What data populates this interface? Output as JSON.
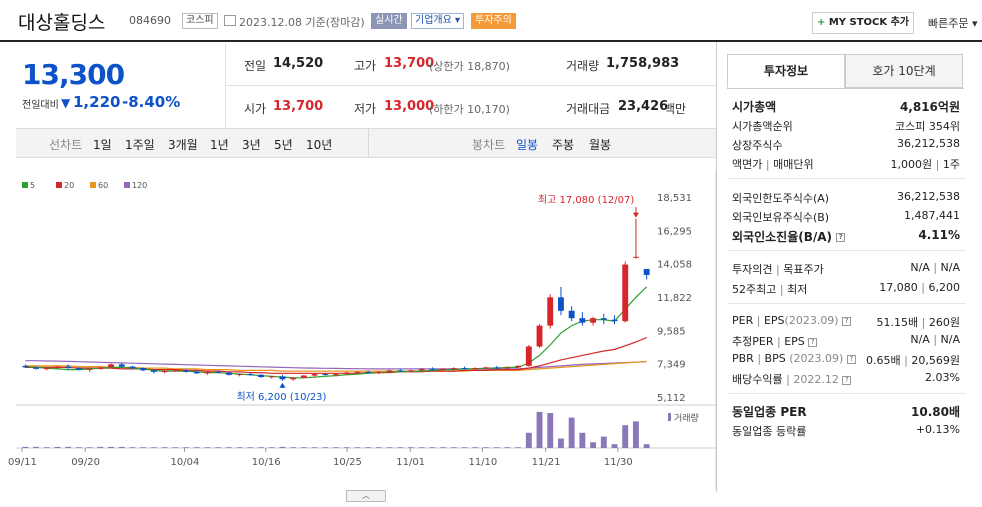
{
  "header": {
    "stock_name": "대상홀딩스",
    "stock_code": "084690",
    "market_badge": "코스피",
    "date_text": "2023.12.08 기준(장마감)",
    "realtime_btn": "실시간",
    "overview_btn": "기업개요 ▾",
    "caution_btn": "투자주의",
    "mystock_btn": "MY STOCK 추가",
    "mystock_plus": "+",
    "quick_order": "빠른주문 ▾"
  },
  "quote": {
    "price": "13,300",
    "change_label": "전일대비",
    "change_value": "1,220",
    "change_pct": "-8.40%",
    "prev_label": "전일",
    "prev_value": "14,520",
    "high_label": "고가",
    "high_value": "13,700",
    "upper_limit": "(상한가 18,870)",
    "volume_label": "거래량",
    "volume_value": "1,758,983",
    "open_label": "시가",
    "open_value": "13,700",
    "low_label": "저가",
    "low_value": "13,000",
    "lower_limit": "(하한가 10,170)",
    "amount_label": "거래대금",
    "amount_value": "23,426",
    "amount_unit": "백만"
  },
  "period_bar": {
    "line_label": "선차트",
    "periods": [
      "1일",
      "1주일",
      "3개월",
      "1년",
      "3년",
      "5년",
      "10년"
    ],
    "candle_label": "봉차트",
    "candle_periods": [
      "일봉",
      "주봉",
      "월봉"
    ],
    "candle_active": "일봉"
  },
  "chart_data": {
    "type": "candlestick",
    "legend": [
      {
        "name": "5",
        "color": "#2ca02c"
      },
      {
        "name": "20",
        "color": "#d62728"
      },
      {
        "name": "60",
        "color": "#e8961e"
      },
      {
        "name": "120",
        "color": "#9467bd"
      }
    ],
    "y_ticks": [
      18531,
      16295,
      14058,
      11822,
      9585,
      7349,
      5112
    ],
    "ylim": [
      5112,
      18531
    ],
    "x_labels": [
      "09/11",
      "09/20",
      "10/04",
      "10/16",
      "10/25",
      "11/01",
      "11/10",
      "11/21",
      "11/30"
    ],
    "high_annotation": "최고 17,080 (12/07)",
    "low_annotation": "최저 6,200 (10/23)",
    "volume_label": "거래량",
    "candles": [
      [
        7200,
        7300,
        7050,
        7100
      ],
      [
        7100,
        7150,
        6950,
        7000
      ],
      [
        7000,
        7100,
        6900,
        7050
      ],
      [
        7050,
        7200,
        7000,
        7150
      ],
      [
        7150,
        7300,
        7000,
        7050
      ],
      [
        7050,
        7100,
        6900,
        6950
      ],
      [
        6950,
        7050,
        6800,
        7000
      ],
      [
        7000,
        7150,
        6950,
        7100
      ],
      [
        7100,
        7350,
        7050,
        7300
      ],
      [
        7300,
        7400,
        7100,
        7150
      ],
      [
        7150,
        7200,
        7000,
        7050
      ],
      [
        7050,
        7100,
        6850,
        6900
      ],
      [
        6900,
        6950,
        6700,
        6800
      ],
      [
        6800,
        6900,
        6700,
        6850
      ],
      [
        6850,
        6950,
        6800,
        6900
      ],
      [
        6900,
        7000,
        6750,
        6800
      ],
      [
        6800,
        6900,
        6650,
        6700
      ],
      [
        6700,
        6850,
        6600,
        6800
      ],
      [
        6800,
        6900,
        6700,
        6750
      ],
      [
        6750,
        6800,
        6550,
        6600
      ],
      [
        6600,
        6700,
        6500,
        6650
      ],
      [
        6650,
        6750,
        6550,
        6600
      ],
      [
        6600,
        6650,
        6400,
        6450
      ],
      [
        6450,
        6550,
        6350,
        6500
      ],
      [
        6500,
        6600,
        6200,
        6300
      ],
      [
        6300,
        6450,
        6200,
        6400
      ],
      [
        6400,
        6600,
        6350,
        6550
      ],
      [
        6550,
        6700,
        6500,
        6650
      ],
      [
        6650,
        6750,
        6550,
        6600
      ],
      [
        6600,
        6700,
        6500,
        6650
      ],
      [
        6650,
        6800,
        6600,
        6750
      ],
      [
        6750,
        6850,
        6700,
        6800
      ],
      [
        6800,
        6900,
        6700,
        6750
      ],
      [
        6750,
        6850,
        6650,
        6800
      ],
      [
        6800,
        6950,
        6750,
        6900
      ],
      [
        6900,
        7000,
        6800,
        6850
      ],
      [
        6850,
        6950,
        6750,
        6900
      ],
      [
        6900,
        7050,
        6850,
        7000
      ],
      [
        7000,
        7100,
        6900,
        6950
      ],
      [
        6950,
        7050,
        6850,
        7000
      ],
      [
        7000,
        7100,
        6900,
        7050
      ],
      [
        7050,
        7150,
        6950,
        7000
      ],
      [
        7000,
        7100,
        6900,
        7050
      ],
      [
        7050,
        7150,
        6950,
        7100
      ],
      [
        7100,
        7200,
        7000,
        7050
      ],
      [
        7050,
        7150,
        6950,
        7100
      ],
      [
        7100,
        7250,
        7050,
        7200
      ],
      [
        7200,
        8600,
        7150,
        8500
      ],
      [
        8500,
        10000,
        8400,
        9900
      ],
      [
        9900,
        12000,
        9700,
        11800
      ],
      [
        11800,
        12500,
        10600,
        10900
      ],
      [
        10900,
        11200,
        10200,
        10400
      ],
      [
        10400,
        10800,
        9900,
        10100
      ],
      [
        10100,
        10500,
        9900,
        10400
      ],
      [
        10400,
        10700,
        10000,
        10300
      ],
      [
        10300,
        10600,
        10000,
        10200
      ],
      [
        10200,
        14200,
        10100,
        14000
      ],
      [
        14520,
        17080,
        14400,
        14520
      ],
      [
        13700,
        13700,
        13000,
        13300
      ]
    ],
    "ma5": [
      7150,
      7100,
      7050,
      7000,
      6950,
      6950,
      7000,
      7050,
      7100,
      7100,
      7050,
      7000,
      6900,
      6850,
      6850,
      6850,
      6800,
      6750,
      6750,
      6700,
      6650,
      6600,
      6550,
      6500,
      6450,
      6400,
      6400,
      6450,
      6500,
      6550,
      6600,
      6650,
      6700,
      6750,
      6800,
      6800,
      6850,
      6850,
      6900,
      6950,
      6950,
      7000,
      7000,
      7050,
      7050,
      7100,
      7100,
      7400,
      7900,
      8600,
      9400,
      9900,
      10200,
      10300,
      10300,
      10200,
      11000,
      11800,
      12500
    ],
    "ma20": [
      7100,
      7100,
      7100,
      7100,
      7100,
      7050,
      7050,
      7050,
      7050,
      7000,
      7000,
      7000,
      6950,
      6950,
      6950,
      6900,
      6900,
      6850,
      6850,
      6800,
      6800,
      6750,
      6750,
      6700,
      6700,
      6700,
      6700,
      6700,
      6700,
      6700,
      6700,
      6700,
      6750,
      6750,
      6750,
      6800,
      6800,
      6800,
      6850,
      6850,
      6850,
      6900,
      6900,
      6900,
      6950,
      6950,
      6950,
      7050,
      7200,
      7400,
      7600,
      7750,
      7900,
      8050,
      8200,
      8300,
      8550,
      8800,
      9100
    ],
    "ma60": [
      7200,
      7200,
      7200,
      7200,
      7200,
      7150,
      7150,
      7150,
      7100,
      7100,
      7100,
      7050,
      7050,
      7050,
      7000,
      7000,
      7000,
      6950,
      6950,
      6950,
      6900,
      6900,
      6900,
      6900,
      6850,
      6850,
      6850,
      6850,
      6850,
      6850,
      6850,
      6850,
      6850,
      6850,
      6850,
      6850,
      6850,
      6850,
      6850,
      6850,
      6850,
      6850,
      6900,
      6900,
      6900,
      6900,
      6900,
      6950,
      7000,
      7050,
      7100,
      7150,
      7200,
      7250,
      7300,
      7350,
      7400,
      7450,
      7500
    ],
    "ma120": [
      7550,
      7550,
      7530,
      7520,
      7500,
      7480,
      7460,
      7440,
      7420,
      7400,
      7380,
      7360,
      7340,
      7320,
      7300,
      7280,
      7260,
      7240,
      7220,
      7200,
      7180,
      7160,
      7140,
      7120,
      7100,
      7080,
      7060,
      7050,
      7040,
      7030,
      7020,
      7010,
      7000,
      7000,
      7000,
      7000,
      7000,
      7000,
      7000,
      7000,
      7000,
      7000,
      7000,
      7000,
      7000,
      7000,
      7000,
      7050,
      7100,
      7150,
      7200,
      7250,
      7300,
      7330,
      7360,
      7390,
      7420,
      7450,
      7480
    ],
    "volume": [
      0.03,
      0.03,
      0.02,
      0.03,
      0.03,
      0.02,
      0.02,
      0.03,
      0.03,
      0.03,
      0.02,
      0.02,
      0.02,
      0.02,
      0.02,
      0.02,
      0.02,
      0.02,
      0.02,
      0.02,
      0.02,
      0.02,
      0.02,
      0.02,
      0.03,
      0.02,
      0.02,
      0.02,
      0.02,
      0.02,
      0.02,
      0.02,
      0.02,
      0.02,
      0.02,
      0.02,
      0.02,
      0.02,
      0.02,
      0.02,
      0.02,
      0.02,
      0.02,
      0.02,
      0.02,
      0.02,
      0.02,
      0.4,
      0.95,
      0.92,
      0.25,
      0.8,
      0.4,
      0.15,
      0.3,
      0.1,
      0.6,
      0.7,
      0.1
    ]
  },
  "right_panel": {
    "tab_invest": "투자정보",
    "tab_hoga": "호가 10단계",
    "rows": {
      "mcap_label": "시가총액",
      "mcap_value": "4,816억원",
      "mcap_rank_label": "시가총액순위",
      "mcap_rank_value": "코스피 354위",
      "shares_label": "상장주식수",
      "shares_value": "36,212,538",
      "par_label": "액면가",
      "par_label2": "매매단위",
      "par_value": "1,000원",
      "unit_value": "1주",
      "foreign_limit_label": "외국인한도주식수(A)",
      "foreign_limit_value": "36,212,538",
      "foreign_hold_label": "외국인보유주식수(B)",
      "foreign_hold_value": "1,487,441",
      "foreign_ratio_label": "외국인소진율(B/A)",
      "foreign_ratio_value": "4.11%",
      "opinion_label": "투자의견",
      "target_label": "목표주가",
      "opinion_value": "N/A",
      "target_value": "N/A",
      "w52_high_label": "52주최고",
      "w52_low_label": "최저",
      "w52_high_value": "17,080",
      "w52_low_value": "6,200",
      "per_label": "PER",
      "eps_label": "EPS",
      "eps_period": "(2023.09)",
      "per_value": "51.15배",
      "eps_value": "260원",
      "est_per_label": "추정PER",
      "est_eps_label": "EPS",
      "est_per_value": "N/A",
      "est_eps_value": "N/A",
      "pbr_label": "PBR",
      "bps_label": "BPS",
      "bps_period": "(2023.09)",
      "pbr_value": "0.65배",
      "bps_value": "20,569원",
      "div_label": "배당수익률",
      "div_period": "2022.12",
      "div_value": "2.03%",
      "sector_per_label": "동일업종 PER",
      "sector_per_value": "10.80배",
      "sector_rate_label": "동일업종 등락률",
      "sector_rate_value": "+0.13%"
    }
  },
  "colors": {
    "up": "#d7262b",
    "down": "#0d52c9"
  }
}
